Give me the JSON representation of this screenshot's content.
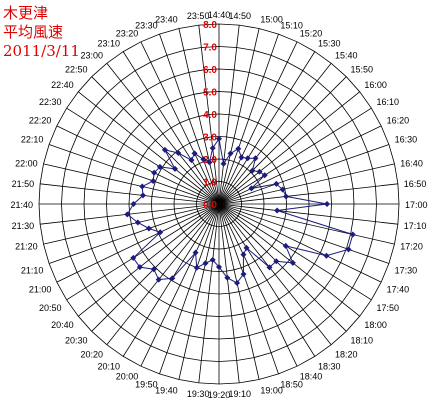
{
  "title_lines": [
    "木更津",
    "平均風速",
    "2011/3/11"
  ],
  "chart_data": {
    "type": "radar",
    "title": "木更津 平均風速 2011/3/11",
    "colors": {
      "series": "#1c1c80",
      "ring_labels": "#e00000",
      "grid": "#000000"
    },
    "r_ticks": [
      0.0,
      1.0,
      2.0,
      3.0,
      4.0,
      5.0,
      6.0,
      7.0,
      8.0
    ],
    "r_tick_labels": [
      "0.0",
      "1.0",
      "2.0",
      "3.0",
      "4.0",
      "5.0",
      "6.0",
      "7.0",
      "8.0"
    ],
    "rlim": [
      0,
      8
    ],
    "categories": [
      "14:40",
      "14:50",
      "15:00",
      "15:10",
      "15:20",
      "15:30",
      "15:40",
      "15:50",
      "16:00",
      "16:10",
      "16:20",
      "16:30",
      "16:40",
      "16:50",
      "17:00",
      "17:10",
      "17:20",
      "17:30",
      "17:40",
      "17:50",
      "18:00",
      "18:10",
      "18:20",
      "18:30",
      "18:40",
      "18:50",
      "19:00",
      "19:10",
      "19:20",
      "19:30",
      "19:40",
      "19:50",
      "20:00",
      "20:10",
      "20:20",
      "20:30",
      "20:40",
      "20:50",
      "21:00",
      "21:10",
      "21:20",
      "21:30",
      "21:40",
      "21:50",
      "22:00",
      "22:10",
      "22:20",
      "22:30",
      "22:40",
      "22:50",
      "23:00",
      "23:10",
      "23:20",
      "23:30",
      "23:40",
      "23:50"
    ],
    "series": [
      {
        "values": [
          2.9,
          1.8,
          2.3,
          2.6,
          2.3,
          2.4,
          2.6,
          2.1,
          2.3,
          2.4,
          1.6,
          2.7,
          2.9,
          3.0,
          4.8,
          2.6,
          6.1,
          6.1,
          5.3,
          3.5,
          4.2,
          3.6,
          3.6,
          2.3,
          2.5,
          3.3,
          3.6,
          3.3,
          2.8,
          2.5,
          2.7,
          3.0,
          2.4,
          3.9,
          4.3,
          4.1,
          4.5,
          4.5,
          2.9,
          3.3,
          3.7,
          4.1,
          3.8,
          3.4,
          3.5,
          3.1,
          3.2,
          3.1,
          2.5,
          3.4,
          2.9,
          2.3,
          2.5,
          2.1,
          1.9,
          2.5
        ]
      }
    ]
  }
}
